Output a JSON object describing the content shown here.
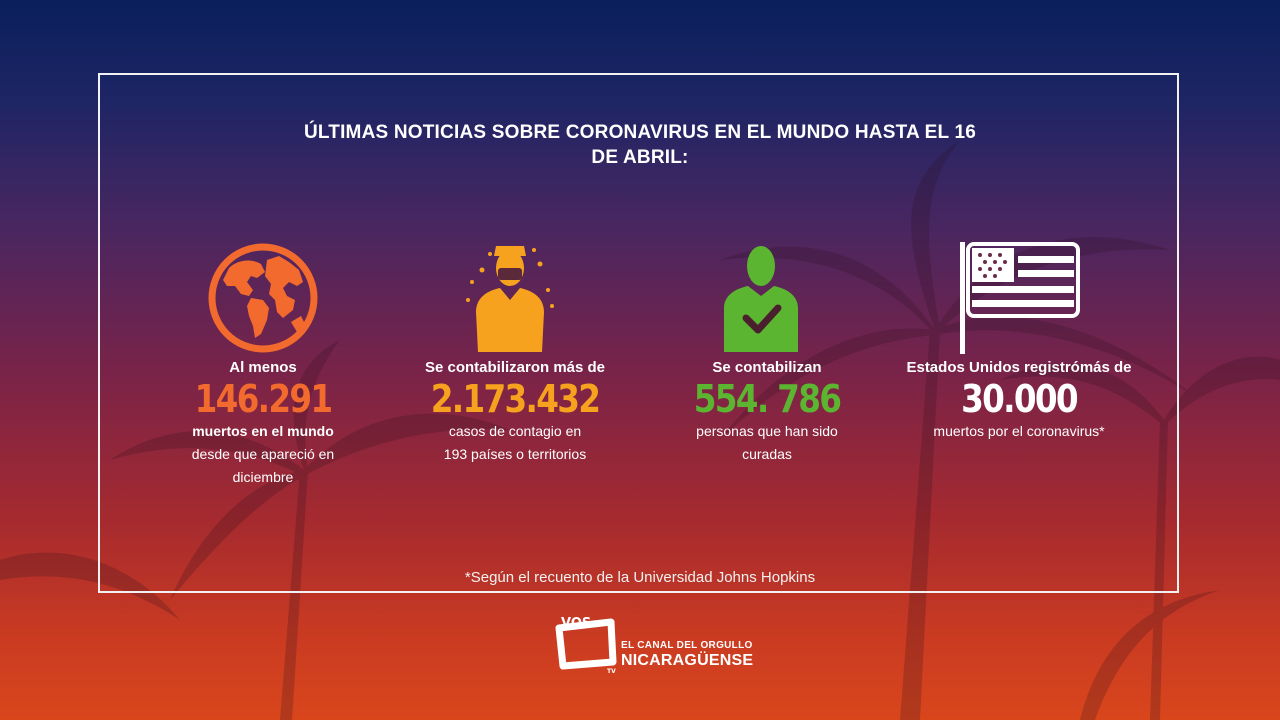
{
  "title": "ÚLTIMAS NOTICIAS SOBRE CORONAVIRUS EN EL MUNDO HASTA EL 16 DE ABRIL:",
  "stats": [
    {
      "icon": "globe-icon",
      "color": "#f26a2e",
      "lead": "Al menos",
      "number": "146.291",
      "line1": "muertos en el mundo",
      "line2": "desde que apareció en",
      "line3": "diciembre"
    },
    {
      "icon": "masked-person-icon",
      "color": "#f7a21e",
      "lead": "Se contabilizaron más de",
      "number": "2.173.432",
      "line1": "casos de contagio en",
      "line2": "193 países o territorios"
    },
    {
      "icon": "person-check-icon",
      "color": "#5cb531",
      "lead": "Se contabilizan",
      "number": "554. 786",
      "line1": "personas que han sido",
      "line2": "curadas"
    },
    {
      "icon": "us-flag-icon",
      "color": "#ffffff",
      "lead": "Estados Unidos registrómás de",
      "number": "30.000",
      "line1": "muertos por el coronavirus*"
    }
  ],
  "footnote": "*Según el recuento de la Universidad Johns Hopkins",
  "logo": {
    "mark": "VOS",
    "tv": "TV",
    "line1": "EL CANAL DEL ORGULLO",
    "line2": "NICARAGÜENSE"
  }
}
